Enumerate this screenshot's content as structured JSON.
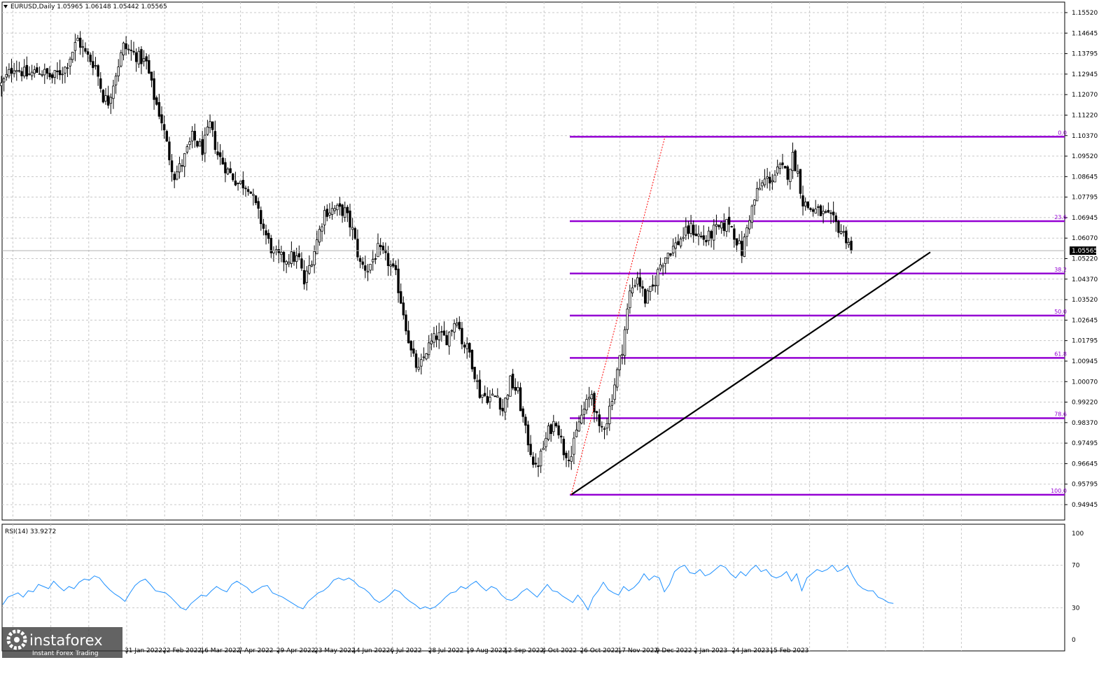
{
  "header": {
    "symbol_text": "EURUSD,Daily  1.05965 1.06148 1.05442 1.05565"
  },
  "rsi_header": {
    "text": "RSI(14) 33.9272"
  },
  "watermark": {
    "brand": "instaforex",
    "tagline": "Instant Forex Trading"
  },
  "colors": {
    "candle": "#000000",
    "fib": "#9400d3",
    "rsi": "#1e90ff",
    "grid": "#c8c8c8",
    "trend": "#000000",
    "fib_diag": "#ff0000"
  },
  "chart_data": [
    {
      "type": "candlestick",
      "title": "",
      "symbol": "EURUSD",
      "timeframe": "Daily",
      "ohlc_last": {
        "open": 1.05965,
        "high": 1.06148,
        "low": 1.05442,
        "close": 1.05565
      },
      "current_price_label": "1.05565",
      "ylim": [
        0.94945,
        1.1552
      ],
      "y_ticks": [
        "1.15520",
        "1.14645",
        "1.13795",
        "1.12945",
        "1.12070",
        "1.11220",
        "1.10370",
        "1.09520",
        "1.08645",
        "1.07795",
        "1.06945",
        "1.06070",
        "1.05220",
        "1.04370",
        "1.03520",
        "1.02645",
        "1.01795",
        "1.00945",
        "1.00070",
        "0.99220",
        "0.98370",
        "0.97495",
        "0.96645",
        "0.95795",
        "0.94945"
      ],
      "x_ticks": [
        "31 Jan 2022",
        "22 Feb 2022",
        "16 Mar 2022",
        "7 Apr 2022",
        "29 Apr 2022",
        "23 May 2022",
        "14 Jun 2022",
        "6 Jul 2022",
        "28 Jul 2022",
        "19 Aug 2022",
        "12 Sep 2022",
        "4 Oct 2022",
        "26 Oct 2022",
        "17 Nov 2022",
        "9 Dec 2022",
        "2 Jan 2023",
        "24 Jan 2023",
        "15 Feb 2023"
      ],
      "fibonacci": {
        "high": 1.1033,
        "low": 0.9536,
        "levels": [
          {
            "label": "0.0",
            "price": 1.1033
          },
          {
            "label": "23.6",
            "price": 1.068
          },
          {
            "label": "38.2",
            "price": 1.0461
          },
          {
            "label": "50.0",
            "price": 1.0285
          },
          {
            "label": "61.8",
            "price": 1.0108
          },
          {
            "label": "78.6",
            "price": 0.9856
          },
          {
            "label": "100.0",
            "price": 0.9536
          }
        ]
      },
      "trendline": {
        "from": [
          "26 Sep 2022",
          0.9536
        ],
        "to": [
          "10 Mar 2023",
          1.055
        ]
      },
      "fib_diagonal": {
        "from": [
          "26 Sep 2022",
          0.9536
        ],
        "to": [
          "30 Oct 2022",
          1.1033
        ]
      },
      "price_path": [
        [
          0,
          1.125
        ],
        [
          5,
          1.133
        ],
        [
          10,
          1.129
        ],
        [
          15,
          1.131
        ],
        [
          20,
          1.128
        ],
        [
          25,
          1.132
        ],
        [
          30,
          1.144
        ],
        [
          33,
          1.138
        ],
        [
          37,
          1.133
        ],
        [
          40,
          1.12
        ],
        [
          42,
          1.118
        ],
        [
          45,
          1.13
        ],
        [
          48,
          1.141
        ],
        [
          52,
          1.138
        ],
        [
          57,
          1.134
        ],
        [
          60,
          1.12
        ],
        [
          63,
          1.11
        ],
        [
          66,
          1.095
        ],
        [
          68,
          1.087
        ],
        [
          71,
          1.092
        ],
        [
          75,
          1.103
        ],
        [
          79,
          1.098
        ],
        [
          82,
          1.108
        ],
        [
          85,
          1.096
        ],
        [
          89,
          1.089
        ],
        [
          93,
          1.084
        ],
        [
          97,
          1.083
        ],
        [
          100,
          1.074
        ],
        [
          104,
          1.062
        ],
        [
          107,
          1.054
        ],
        [
          111,
          1.052
        ],
        [
          114,
          1.053
        ],
        [
          117,
          1.052
        ],
        [
          119,
          1.042
        ],
        [
          123,
          1.056
        ],
        [
          127,
          1.072
        ],
        [
          131,
          1.073
        ],
        [
          135,
          1.072
        ],
        [
          138,
          1.064
        ],
        [
          141,
          1.05
        ],
        [
          144,
          1.048
        ],
        [
          148,
          1.056
        ],
        [
          152,
          1.051
        ],
        [
          155,
          1.045
        ],
        [
          158,
          1.03
        ],
        [
          161,
          1.013
        ],
        [
          164,
          1.005
        ],
        [
          167,
          1.014
        ],
        [
          171,
          1.02
        ],
        [
          175,
          1.019
        ],
        [
          179,
          1.028
        ],
        [
          181,
          1.018
        ],
        [
          184,
          1.013
        ],
        [
          188,
          0.996
        ],
        [
          192,
          0.994
        ],
        [
          195,
          0.995
        ],
        [
          197,
          0.989
        ],
        [
          200,
          1.001
        ],
        [
          203,
          0.996
        ],
        [
          206,
          0.98
        ],
        [
          208,
          0.972
        ],
        [
          210,
          0.964
        ],
        [
          212,
          0.97
        ],
        [
          215,
          0.98
        ],
        [
          218,
          0.985
        ],
        [
          221,
          0.972
        ],
        [
          224,
          0.97
        ],
        [
          227,
          0.984
        ],
        [
          229,
          0.989
        ],
        [
          232,
          0.996
        ],
        [
          235,
          0.98
        ],
        [
          238,
          0.985
        ],
        [
          241,
          1.0
        ],
        [
          244,
          1.015
        ],
        [
          247,
          1.038
        ],
        [
          250,
          1.045
        ],
        [
          253,
          1.035
        ],
        [
          256,
          1.04
        ],
        [
          259,
          1.05
        ],
        [
          262,
          1.055
        ],
        [
          265,
          1.058
        ],
        [
          268,
          1.062
        ],
        [
          271,
          1.065
        ],
        [
          274,
          1.062
        ],
        [
          277,
          1.06
        ],
        [
          280,
          1.064
        ],
        [
          283,
          1.065
        ],
        [
          286,
          1.068
        ],
        [
          289,
          1.06
        ],
        [
          291,
          1.055
        ],
        [
          294,
          1.07
        ],
        [
          297,
          1.08
        ],
        [
          300,
          1.085
        ],
        [
          303,
          1.086
        ],
        [
          306,
          1.09
        ],
        [
          309,
          1.088
        ],
        [
          311,
          1.095
        ],
        [
          313,
          1.088
        ],
        [
          315,
          1.076
        ],
        [
          318,
          1.073
        ],
        [
          321,
          1.072
        ],
        [
          324,
          1.07
        ],
        [
          327,
          1.068
        ],
        [
          330,
          1.064
        ],
        [
          333,
          1.0597
        ],
        [
          334,
          1.0557
        ]
      ]
    },
    {
      "type": "line",
      "title": "RSI(14)",
      "indicator": "RSI(14)",
      "last_value": 33.9272,
      "ylim": [
        0,
        100
      ],
      "y_ticks": [
        "100",
        "70",
        "30",
        "0"
      ],
      "x_step": 2,
      "values": [
        33,
        40,
        42,
        44,
        40,
        46,
        45,
        52,
        50,
        48,
        55,
        50,
        46,
        50,
        48,
        54,
        57,
        56,
        60,
        58,
        52,
        47,
        43,
        40,
        36,
        44,
        51,
        55,
        57,
        52,
        46,
        45,
        44,
        40,
        35,
        30,
        28,
        34,
        38,
        42,
        41,
        46,
        50,
        47,
        45,
        52,
        55,
        52,
        49,
        44,
        47,
        50,
        51,
        44,
        42,
        40,
        37,
        34,
        31,
        29,
        36,
        40,
        44,
        46,
        50,
        56,
        58,
        56,
        58,
        55,
        50,
        48,
        44,
        38,
        35,
        38,
        42,
        47,
        45,
        40,
        36,
        33,
        29,
        31,
        29,
        31,
        35,
        40,
        44,
        45,
        50,
        48,
        52,
        55,
        50,
        46,
        50,
        48,
        42,
        38,
        37,
        40,
        45,
        48,
        44,
        40,
        46,
        52,
        46,
        45,
        41,
        38,
        35,
        42,
        36,
        28,
        40,
        46,
        54,
        47,
        44,
        42,
        50,
        46,
        49,
        54,
        62,
        56,
        60,
        58,
        45,
        52,
        64,
        68,
        70,
        63,
        62,
        66,
        60,
        62,
        66,
        70,
        68,
        62,
        58,
        64,
        60,
        66,
        70,
        64,
        66,
        60,
        58,
        60,
        64,
        55,
        62,
        46,
        58,
        62,
        66,
        64,
        66,
        70,
        64,
        66,
        70,
        60,
        52,
        48,
        46,
        46,
        40,
        38,
        35,
        34
      ]
    }
  ]
}
